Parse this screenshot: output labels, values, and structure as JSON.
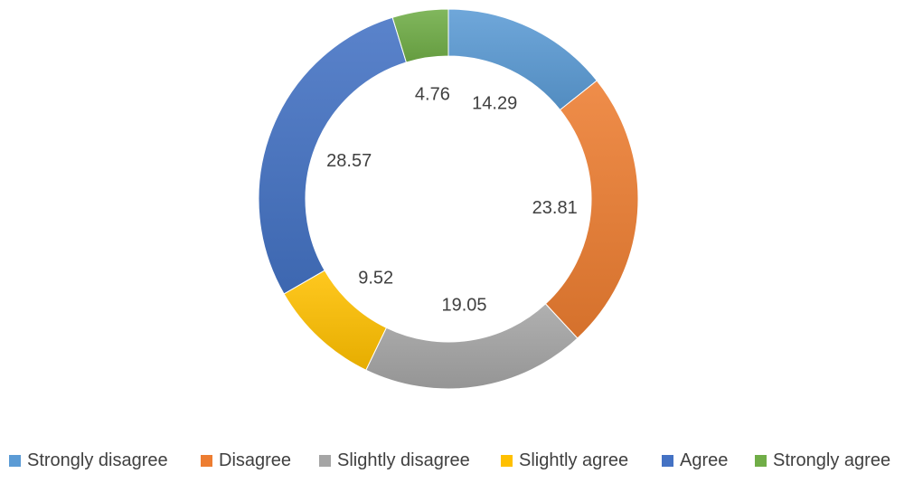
{
  "chart_data": {
    "type": "pie",
    "variant": "doughnut",
    "title": "",
    "categories": [
      "Strongly disagree",
      "Disagree",
      "Slightly disagree",
      "Slightly agree",
      "Agree",
      "Strongly agree"
    ],
    "values": [
      14.29,
      23.81,
      19.05,
      9.52,
      28.57,
      4.76
    ],
    "data_labels": [
      "14.29",
      "23.81",
      "19.05",
      "9.52",
      "28.57",
      "4.76"
    ],
    "colors": [
      "#5B9BD5",
      "#ED7D31",
      "#A5A5A5",
      "#FFC000",
      "#4472C4",
      "#70AD47"
    ],
    "legend": {
      "placement": "bottom"
    }
  }
}
